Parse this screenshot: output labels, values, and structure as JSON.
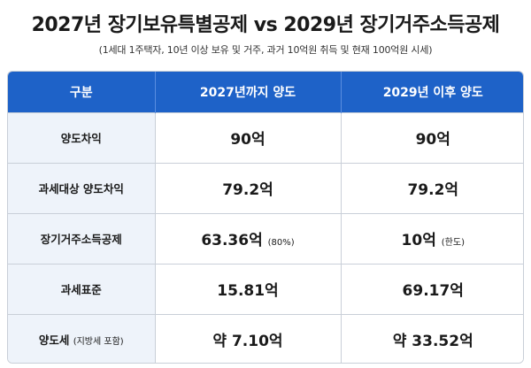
{
  "title": "2027년 장기보유특별공제 vs 2029년 장기거주소득공제",
  "subtitle": "(1세대 1주택자, 10년 이상 보유 및 거주, 과거 10억원 취득 및 현재 100억원 시세)",
  "table": {
    "headers": [
      "구분",
      "2027년까지 양도",
      "2029년 이후 양도"
    ],
    "rows": [
      {
        "label": "양도차익",
        "label_note": "",
        "v2027": "90억",
        "v2027_note": "",
        "v2029": "90억",
        "v2029_note": ""
      },
      {
        "label": "과세대상 양도차익",
        "label_note": "",
        "v2027": "79.2억",
        "v2027_note": "",
        "v2029": "79.2억",
        "v2029_note": ""
      },
      {
        "label": "장기거주소득공제",
        "label_note": "",
        "v2027": "63.36억",
        "v2027_note": "(80%)",
        "v2029": "10억",
        "v2029_note": "(한도)"
      },
      {
        "label": "과세표준",
        "label_note": "",
        "v2027": "15.81억",
        "v2027_note": "",
        "v2029": "69.17억",
        "v2029_note": ""
      },
      {
        "label": "양도세",
        "label_note": "(지방세 포함)",
        "v2027": "약 7.10억",
        "v2027_note": "",
        "v2029": "약 33.52억",
        "v2029_note": ""
      }
    ]
  },
  "colors": {
    "header_bg": "#1e62c8",
    "label_bg": "#eef3fa"
  }
}
